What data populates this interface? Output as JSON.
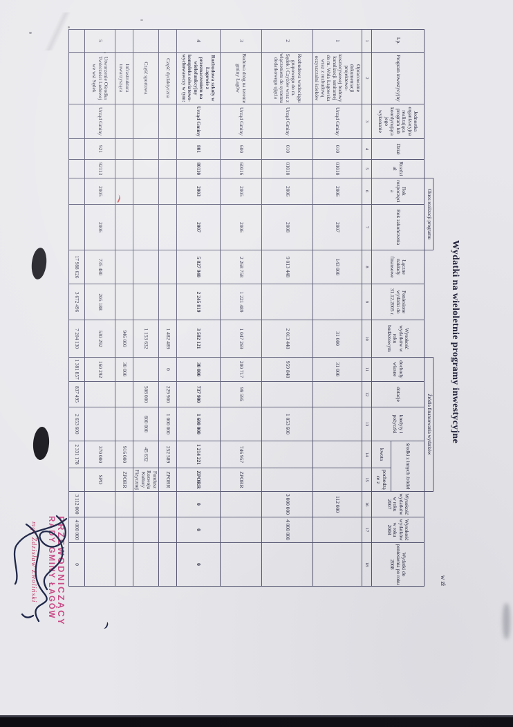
{
  "document": {
    "title": "Wydatki na wieloletnie programy inwestycyjne",
    "currency_note": "w zł"
  },
  "table": {
    "group_headers": {
      "okres": "Okres realizacji programu",
      "zrodla": "Źródła finansowania wydatków",
      "srodki": "środki z innych źródeł",
      "kwota": "kwota",
      "pochodzace": "pochodzące z"
    },
    "columns": [
      "Lp.",
      "Program inwestycyjny",
      "Jednostka organizacyjna realizująca program lub koordynująca jego wykonanie",
      "Dział",
      "Rozdział",
      "Rok rozpoczęcia",
      "Rok zakończenia",
      "Łączne nakłady finansowe",
      "Poniesione wydatki do 31.12.2005 r.",
      "Wysokość wydatków w roku budżetowym",
      "dochody własne",
      "dotacje",
      "kredyty i pożyczki",
      "Wysokość wydatków w roku 2007",
      "Wysokość wydatków w roku 2008",
      "Wydatki do poniesienia po roku 2008"
    ],
    "col_numbers": [
      "1",
      "2",
      "3",
      "4",
      "5",
      "6",
      "7",
      "8",
      "9",
      "10",
      "11",
      "12",
      "13",
      "14",
      "15",
      "16",
      "17",
      "18"
    ],
    "rows": [
      {
        "bold": false,
        "cells": [
          "1",
          "Opracowanie dokumentacji projektowo- kosztorysowej budowy kanalizacji sanitarnej do m. Wola Łagowska wraz z rozbudową oczyszczalni ścieków",
          "Urząd Gminy",
          "010",
          "01010",
          "2006",
          "2007",
          "143 000",
          "",
          "31 000",
          "31 000",
          "",
          "",
          "",
          "",
          "112 000",
          "",
          ""
        ]
      },
      {
        "bold": false,
        "cells": [
          "2",
          "Rozbudowa wodociągu grupowego do m. Sędek i Czyżów wraz z włączeniem do systemu dodatkowego ujęcia",
          "Urząd Gminy",
          "010",
          "01010",
          "2006",
          "2008",
          "9 013 448",
          "",
          "2 013 448",
          "959 848",
          "",
          "1 053 600",
          "",
          "",
          "3 000 000",
          "4 000 000",
          ""
        ]
      },
      {
        "bold": false,
        "cells": [
          "3",
          "Budowa dróg na terenie gminy Łagów",
          "Urząd Gminy",
          "600",
          "60016",
          "2005",
          "2006",
          "2 268 758",
          "1 221 489",
          "1 047 269",
          "200 717",
          "99 595",
          "",
          "746 957",
          "ZPORR",
          "",
          "",
          ""
        ]
      },
      {
        "bold": true,
        "cells": [
          "4",
          "Rozbudowa szkoły w Łagowie z przeznaczeniem na wielofunkcyjny kompleks oświatowo- wychowawczy w tym:",
          "Urząd Gminy",
          "801",
          "80110",
          "2003",
          "2007",
          "5 827 940",
          "2 245 819",
          "3 582 121",
          "30 000",
          "737 900",
          "1 600 000",
          "1 214 221",
          "ZPORR",
          "0",
          "0",
          "0"
        ]
      },
      {
        "bold": false,
        "cells": [
          "",
          "Część dydaktyczna",
          "",
          "",
          "",
          "",
          "",
          "",
          "",
          "1 482 489",
          "0",
          "229 900",
          "1 000 000",
          "252 589",
          "ZPORR",
          "",
          "",
          ""
        ]
      },
      {
        "bold": false,
        "cells": [
          "",
          "Część sportowa",
          "",
          "",
          "",
          "",
          "",
          "",
          "",
          "1 153 632",
          "",
          "508 000",
          "600 000",
          "45 632",
          "Fundusz Rozwoju Kultury Fizycznej",
          "",
          "",
          ""
        ]
      },
      {
        "bold": false,
        "cells": [
          "",
          "Infrastruktura towarzysząca",
          "",
          "",
          "",
          "",
          "",
          "",
          "",
          "946 000",
          "30 000",
          "",
          "",
          "916 000",
          "ZPORR",
          "",
          "",
          ""
        ]
      },
      {
        "bold": false,
        "cells": [
          "5",
          "Utworzenie Ośrodka Twórczości Ludowej we wsi Sędek",
          "Urząd Gminy",
          "921",
          "92113",
          "2005",
          "2006",
          "735 480",
          "205 188",
          "530 292",
          "160 292",
          "",
          "",
          "370 000",
          "SPO",
          "",
          "",
          ""
        ]
      },
      {
        "bold": false,
        "totals": true,
        "cells": [
          "",
          "",
          "",
          "",
          "",
          "",
          "",
          "17 988 626",
          "3 672 496",
          "7 204 130",
          "1 381 857",
          "837 495",
          "2 653 600",
          "2 331 178",
          "",
          "3 112 000",
          "4 000 000",
          "0"
        ]
      }
    ]
  },
  "stamp": {
    "line1": "PRZEWODNICZĄCY",
    "line2": "RADY GMINY ŁAGÓW",
    "signatory": "mgr Zdzisław Zwoliński"
  },
  "colors": {
    "stamp_pink": "#c84a86",
    "ink": "#23233d",
    "signature_ink": "#1d2547",
    "check_red": "#c03333"
  }
}
